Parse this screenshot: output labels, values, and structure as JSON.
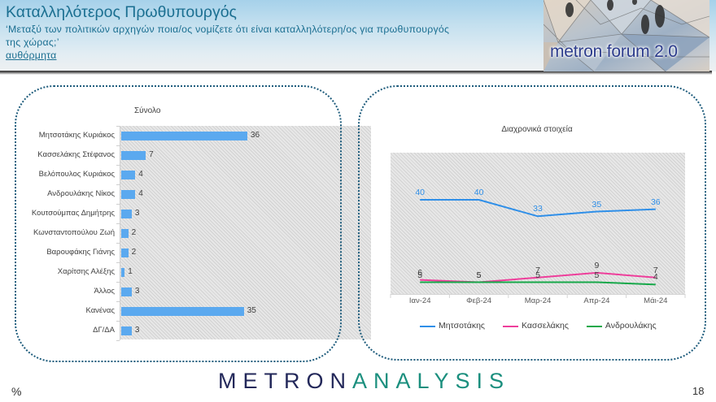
{
  "header": {
    "title": "Καταλληλότερος Πρωθυπουργός",
    "question_line1": "‘Μεταξύ των πολιτικών αρχηγών ποια/ος νομίζετε ότι είναι καταλληλότερη/ος για πρωθυπουργός",
    "question_line2": "της χώρας;’",
    "note": "αυθόρμητα",
    "logo_text": "metron forum 2.0"
  },
  "footer": {
    "unit": "%",
    "brand_metron": "METRON",
    "brand_analysis": "ANALYSIS",
    "page_number": "18"
  },
  "colors": {
    "title": "#1b6f91",
    "bar": "#5ba9ef",
    "box_border": "#1e5c7c",
    "brand_navy": "#23285a",
    "brand_teal": "#1b8f7e",
    "label_text": "#404040"
  },
  "chart_data": [
    {
      "type": "bar",
      "orientation": "horizontal",
      "title": "Σύνολο",
      "categories": [
        "Μητσοτάκης Κυριάκος",
        "Κασσελάκης Στέφανος",
        "Βελόπουλος Κυριάκος",
        "Ανδρουλάκης Νίκος",
        "Κουτσούμπας Δημήτρης",
        "Κωνσταντοπούλου Ζωή",
        "Βαρουφάκης Γιάνης",
        "Χαρίτσης Αλέξης",
        "Άλλος",
        "Κανένας",
        "ΔΓ/ΔΑ"
      ],
      "values": [
        36,
        7,
        4,
        4,
        3,
        2,
        2,
        1,
        3,
        35,
        3
      ],
      "xlabel": "",
      "ylabel": "",
      "unit": "%",
      "grid": false,
      "data_labels": true
    },
    {
      "type": "line",
      "title": "Διαχρονικά στοιχεία",
      "categories": [
        "Ιαν-24",
        "Φεβ-24",
        "Μαρ-24",
        "Απρ-24",
        "Μάι-24"
      ],
      "series": [
        {
          "name": "Μητσοτάκης",
          "values": [
            40,
            40,
            33,
            35,
            36
          ],
          "color": "#2f8fe8"
        },
        {
          "name": "Κασσελάκης",
          "values": [
            6,
            5,
            7,
            9,
            7
          ],
          "color": "#ee3e9b"
        },
        {
          "name": "Ανδρουλάκης",
          "values": [
            5,
            5,
            5,
            5,
            4
          ],
          "color": "#17a84a"
        }
      ],
      "ylim": [
        0,
        60
      ],
      "xlabel": "",
      "ylabel": "",
      "legend_position": "bottom",
      "grid": false,
      "data_labels": true
    }
  ]
}
